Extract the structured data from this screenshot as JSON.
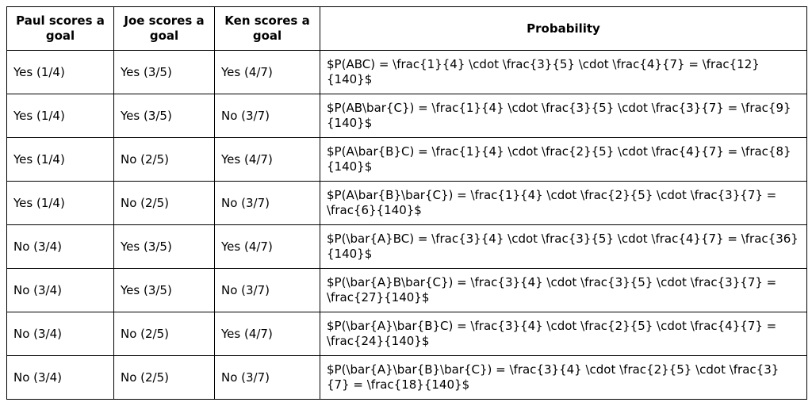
{
  "headers": [
    "Paul scores a goal",
    "Joe scores a goal",
    "Ken scores a goal",
    "Probability"
  ],
  "rows": [
    [
      "Yes (1/4)",
      "Yes (3/5)",
      "Yes (4/7)",
      "$P(ABC) = \\frac{1}{4} \\cdot \\frac{3}{5} \\cdot \\frac{4}{7} = \\frac{12}{140}$"
    ],
    [
      "Yes (1/4)",
      "Yes (3/5)",
      "No (3/7)",
      "$P(AB\\bar{C}) = \\frac{1}{4} \\cdot \\frac{3}{5} \\cdot \\frac{3}{7} = \\frac{9}{140}$"
    ],
    [
      "Yes (1/4)",
      "No (2/5)",
      "Yes (4/7)",
      "$P(A\\bar{B}C) = \\frac{1}{4} \\cdot \\frac{2}{5} \\cdot \\frac{4}{7} = \\frac{8}{140}$"
    ],
    [
      "Yes (1/4)",
      "No (2/5)",
      "No (3/7)",
      "$P(A\\bar{B}\\bar{C}) = \\frac{1}{4} \\cdot \\frac{2}{5} \\cdot \\frac{3}{7} = \\frac{6}{140}$"
    ],
    [
      "No (3/4)",
      "Yes (3/5)",
      "Yes (4/7)",
      "$P(\\bar{A}BC) = \\frac{3}{4} \\cdot \\frac{3}{5} \\cdot \\frac{4}{7} = \\frac{36}{140}$"
    ],
    [
      "No (3/4)",
      "Yes (3/5)",
      "No (3/7)",
      "$P(\\bar{A}B\\bar{C}) = \\frac{3}{4} \\cdot \\frac{3}{5} \\cdot \\frac{3}{7} = \\frac{27}{140}$"
    ],
    [
      "No (3/4)",
      "No (2/5)",
      "Yes (4/7)",
      "$P(\\bar{A}\\bar{B}C) = \\frac{3}{4} \\cdot \\frac{2}{5} \\cdot \\frac{4}{7} = \\frac{24}{140}$"
    ],
    [
      "No (3/4)",
      "No (2/5)",
      "No (3/7)",
      "$P(\\bar{A}\\bar{B}\\bar{C}) = \\frac{3}{4} \\cdot \\frac{2}{5} \\cdot \\frac{3}{7} = \\frac{18}{140}$"
    ]
  ]
}
